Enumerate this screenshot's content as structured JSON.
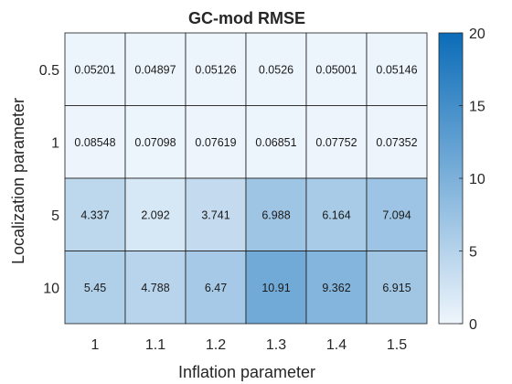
{
  "chart_data": {
    "type": "heatmap",
    "title": "GC-mod RMSE",
    "xlabel": "Inflation parameter",
    "ylabel": "Localization parameter",
    "x_categories": [
      "1",
      "1.1",
      "1.2",
      "1.3",
      "1.4",
      "1.5"
    ],
    "y_categories": [
      "0.5",
      "1",
      "5",
      "10"
    ],
    "values": [
      [
        0.05201,
        0.04897,
        0.05126,
        0.0526,
        0.05001,
        0.05146
      ],
      [
        0.08548,
        0.07098,
        0.07619,
        0.06851,
        0.07752,
        0.07352
      ],
      [
        4.337,
        2.092,
        3.741,
        6.988,
        6.164,
        7.094
      ],
      [
        5.45,
        4.788,
        6.47,
        10.91,
        9.362,
        6.915
      ]
    ],
    "cell_labels": [
      [
        "0.05201",
        "0.04897",
        "0.05126",
        "0.0526",
        "0.05001",
        "0.05146"
      ],
      [
        "0.08548",
        "0.07098",
        "0.07619",
        "0.06851",
        "0.07752",
        "0.07352"
      ],
      [
        "4.337",
        "2.092",
        "3.741",
        "6.988",
        "6.164",
        "7.094"
      ],
      [
        "5.45",
        "4.788",
        "6.47",
        "10.91",
        "9.362",
        "6.915"
      ]
    ],
    "colorbar": {
      "range": [
        0,
        20
      ],
      "ticks": [
        "0",
        "5",
        "10",
        "15",
        "20"
      ],
      "color_low": "#eef5fc",
      "color_high": "#0b6cb8"
    },
    "grid": true,
    "legend": "colorbar-right"
  }
}
